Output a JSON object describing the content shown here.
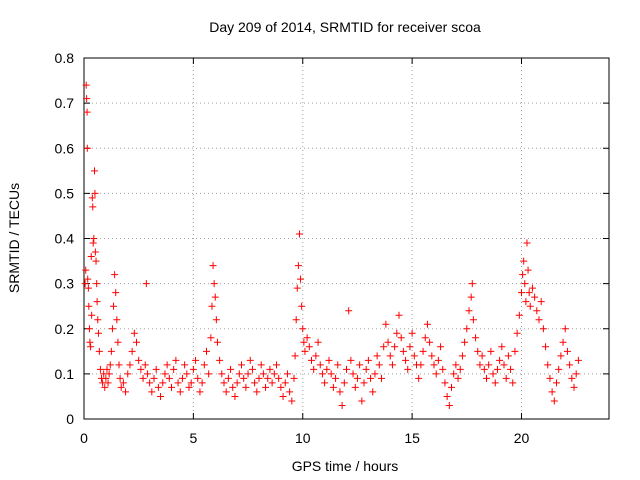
{
  "chart_data": {
    "type": "scatter",
    "title": "Day 209 of 2014, SRMTID for receiver scoa",
    "xlabel": "GPS time / hours",
    "ylabel": "SRMTID / TECUs",
    "xlim": [
      0,
      24
    ],
    "ylim": [
      0,
      0.8
    ],
    "xticks": [
      0,
      5,
      10,
      15,
      20
    ],
    "yticks": [
      0,
      0.1,
      0.2,
      0.3,
      0.4,
      0.5,
      0.6,
      0.7,
      0.8
    ],
    "xtick_labels": [
      "0",
      "5",
      "10",
      "15",
      "20"
    ],
    "ytick_labels": [
      "0",
      "0.1",
      "0.2",
      "0.3",
      "0.4",
      "0.5",
      "0.6",
      "0.7",
      "0.8"
    ],
    "marker": "plus",
    "color": "#ff0000",
    "series": [
      {
        "name": "SRMTID",
        "points": [
          [
            0.05,
            0.3
          ],
          [
            0.08,
            0.33
          ],
          [
            0.1,
            0.74
          ],
          [
            0.12,
            0.71
          ],
          [
            0.14,
            0.68
          ],
          [
            0.15,
            0.6
          ],
          [
            0.17,
            0.31
          ],
          [
            0.2,
            0.29
          ],
          [
            0.22,
            0.25
          ],
          [
            0.25,
            0.2
          ],
          [
            0.27,
            0.17
          ],
          [
            0.3,
            0.16
          ],
          [
            0.33,
            0.36
          ],
          [
            0.35,
            0.23
          ],
          [
            0.38,
            0.49
          ],
          [
            0.4,
            0.47
          ],
          [
            0.42,
            0.39
          ],
          [
            0.45,
            0.4
          ],
          [
            0.48,
            0.55
          ],
          [
            0.5,
            0.5
          ],
          [
            0.52,
            0.37
          ],
          [
            0.55,
            0.35
          ],
          [
            0.58,
            0.3
          ],
          [
            0.6,
            0.26
          ],
          [
            0.63,
            0.22
          ],
          [
            0.66,
            0.19
          ],
          [
            0.7,
            0.15
          ],
          [
            0.75,
            0.11
          ],
          [
            0.8,
            0.09
          ],
          [
            0.85,
            0.08
          ],
          [
            0.9,
            0.1
          ],
          [
            0.95,
            0.07
          ],
          [
            1.0,
            0.09
          ],
          [
            1.05,
            0.11
          ],
          [
            1.1,
            0.08
          ],
          [
            1.15,
            0.1
          ],
          [
            1.2,
            0.12
          ],
          [
            1.25,
            0.15
          ],
          [
            1.3,
            0.2
          ],
          [
            1.35,
            0.25
          ],
          [
            1.4,
            0.32
          ],
          [
            1.45,
            0.28
          ],
          [
            1.5,
            0.22
          ],
          [
            1.55,
            0.17
          ],
          [
            1.6,
            0.12
          ],
          [
            1.65,
            0.09
          ],
          [
            1.7,
            0.07
          ],
          [
            1.8,
            0.08
          ],
          [
            1.9,
            0.06
          ],
          [
            2.0,
            0.1
          ],
          [
            2.1,
            0.12
          ],
          [
            2.2,
            0.15
          ],
          [
            2.3,
            0.19
          ],
          [
            2.4,
            0.17
          ],
          [
            2.5,
            0.13
          ],
          [
            2.6,
            0.11
          ],
          [
            2.7,
            0.09
          ],
          [
            2.8,
            0.12
          ],
          [
            2.85,
            0.3
          ],
          [
            2.9,
            0.1
          ],
          [
            3.0,
            0.08
          ],
          [
            3.1,
            0.06
          ],
          [
            3.2,
            0.09
          ],
          [
            3.3,
            0.11
          ],
          [
            3.4,
            0.07
          ],
          [
            3.5,
            0.05
          ],
          [
            3.6,
            0.08
          ],
          [
            3.7,
            0.1
          ],
          [
            3.8,
            0.12
          ],
          [
            3.9,
            0.09
          ],
          [
            4.0,
            0.07
          ],
          [
            4.1,
            0.11
          ],
          [
            4.2,
            0.13
          ],
          [
            4.3,
            0.08
          ],
          [
            4.4,
            0.06
          ],
          [
            4.5,
            0.09
          ],
          [
            4.6,
            0.12
          ],
          [
            4.7,
            0.1
          ],
          [
            4.8,
            0.07
          ],
          [
            4.9,
            0.08
          ],
          [
            5.0,
            0.11
          ],
          [
            5.1,
            0.13
          ],
          [
            5.2,
            0.09
          ],
          [
            5.3,
            0.06
          ],
          [
            5.4,
            0.08
          ],
          [
            5.5,
            0.12
          ],
          [
            5.6,
            0.15
          ],
          [
            5.7,
            0.1
          ],
          [
            5.8,
            0.18
          ],
          [
            5.85,
            0.25
          ],
          [
            5.9,
            0.34
          ],
          [
            5.95,
            0.3
          ],
          [
            6.0,
            0.27
          ],
          [
            6.05,
            0.22
          ],
          [
            6.1,
            0.17
          ],
          [
            6.2,
            0.13
          ],
          [
            6.3,
            0.1
          ],
          [
            6.4,
            0.08
          ],
          [
            6.5,
            0.06
          ],
          [
            6.6,
            0.09
          ],
          [
            6.7,
            0.11
          ],
          [
            6.8,
            0.07
          ],
          [
            6.9,
            0.05
          ],
          [
            7.0,
            0.08
          ],
          [
            7.1,
            0.1
          ],
          [
            7.2,
            0.12
          ],
          [
            7.3,
            0.09
          ],
          [
            7.4,
            0.07
          ],
          [
            7.5,
            0.1
          ],
          [
            7.6,
            0.13
          ],
          [
            7.7,
            0.11
          ],
          [
            7.8,
            0.08
          ],
          [
            7.9,
            0.06
          ],
          [
            8.0,
            0.09
          ],
          [
            8.1,
            0.12
          ],
          [
            8.2,
            0.1
          ],
          [
            8.3,
            0.07
          ],
          [
            8.4,
            0.09
          ],
          [
            8.5,
            0.11
          ],
          [
            8.6,
            0.08
          ],
          [
            8.7,
            0.1
          ],
          [
            8.8,
            0.12
          ],
          [
            8.9,
            0.09
          ],
          [
            9.0,
            0.07
          ],
          [
            9.1,
            0.05
          ],
          [
            9.2,
            0.08
          ],
          [
            9.3,
            0.1
          ],
          [
            9.4,
            0.06
          ],
          [
            9.5,
            0.04
          ],
          [
            9.6,
            0.09
          ],
          [
            9.65,
            0.14
          ],
          [
            9.7,
            0.22
          ],
          [
            9.75,
            0.29
          ],
          [
            9.8,
            0.34
          ],
          [
            9.85,
            0.41
          ],
          [
            9.9,
            0.31
          ],
          [
            9.95,
            0.25
          ],
          [
            10.0,
            0.2
          ],
          [
            10.05,
            0.17
          ],
          [
            10.1,
            0.15
          ],
          [
            10.2,
            0.18
          ],
          [
            10.3,
            0.16
          ],
          [
            10.4,
            0.13
          ],
          [
            10.5,
            0.11
          ],
          [
            10.6,
            0.14
          ],
          [
            10.7,
            0.17
          ],
          [
            10.8,
            0.12
          ],
          [
            10.9,
            0.1
          ],
          [
            11.0,
            0.08
          ],
          [
            11.1,
            0.11
          ],
          [
            11.2,
            0.13
          ],
          [
            11.3,
            0.1
          ],
          [
            11.4,
            0.07
          ],
          [
            11.5,
            0.09
          ],
          [
            11.6,
            0.12
          ],
          [
            11.7,
            0.06
          ],
          [
            11.8,
            0.03
          ],
          [
            11.9,
            0.08
          ],
          [
            12.0,
            0.11
          ],
          [
            12.1,
            0.24
          ],
          [
            12.2,
            0.13
          ],
          [
            12.3,
            0.1
          ],
          [
            12.4,
            0.07
          ],
          [
            12.5,
            0.09
          ],
          [
            12.6,
            0.12
          ],
          [
            12.7,
            0.04
          ],
          [
            12.8,
            0.08
          ],
          [
            12.9,
            0.11
          ],
          [
            13.0,
            0.13
          ],
          [
            13.1,
            0.09
          ],
          [
            13.2,
            0.06
          ],
          [
            13.3,
            0.1
          ],
          [
            13.4,
            0.14
          ],
          [
            13.5,
            0.12
          ],
          [
            13.6,
            0.09
          ],
          [
            13.7,
            0.16
          ],
          [
            13.8,
            0.21
          ],
          [
            13.9,
            0.17
          ],
          [
            14.0,
            0.14
          ],
          [
            14.1,
            0.12
          ],
          [
            14.2,
            0.16
          ],
          [
            14.3,
            0.19
          ],
          [
            14.4,
            0.23
          ],
          [
            14.5,
            0.18
          ],
          [
            14.6,
            0.15
          ],
          [
            14.7,
            0.13
          ],
          [
            14.8,
            0.11
          ],
          [
            14.9,
            0.16
          ],
          [
            15.0,
            0.19
          ],
          [
            15.1,
            0.14
          ],
          [
            15.2,
            0.12
          ],
          [
            15.3,
            0.09
          ],
          [
            15.4,
            0.12
          ],
          [
            15.5,
            0.15
          ],
          [
            15.6,
            0.18
          ],
          [
            15.7,
            0.21
          ],
          [
            15.8,
            0.17
          ],
          [
            15.9,
            0.14
          ],
          [
            16.0,
            0.12
          ],
          [
            16.1,
            0.1
          ],
          [
            16.2,
            0.13
          ],
          [
            16.3,
            0.16
          ],
          [
            16.4,
            0.11
          ],
          [
            16.5,
            0.08
          ],
          [
            16.6,
            0.05
          ],
          [
            16.7,
            0.03
          ],
          [
            16.8,
            0.07
          ],
          [
            16.9,
            0.1
          ],
          [
            17.0,
            0.12
          ],
          [
            17.1,
            0.09
          ],
          [
            17.2,
            0.11
          ],
          [
            17.3,
            0.14
          ],
          [
            17.4,
            0.17
          ],
          [
            17.5,
            0.2
          ],
          [
            17.6,
            0.24
          ],
          [
            17.7,
            0.27
          ],
          [
            17.75,
            0.3
          ],
          [
            17.8,
            0.22
          ],
          [
            17.9,
            0.18
          ],
          [
            18.0,
            0.15
          ],
          [
            18.1,
            0.12
          ],
          [
            18.2,
            0.14
          ],
          [
            18.3,
            0.11
          ],
          [
            18.4,
            0.09
          ],
          [
            18.5,
            0.12
          ],
          [
            18.6,
            0.15
          ],
          [
            18.7,
            0.1
          ],
          [
            18.8,
            0.08
          ],
          [
            18.9,
            0.11
          ],
          [
            19.0,
            0.13
          ],
          [
            19.1,
            0.16
          ],
          [
            19.2,
            0.12
          ],
          [
            19.3,
            0.09
          ],
          [
            19.4,
            0.14
          ],
          [
            19.5,
            0.11
          ],
          [
            19.6,
            0.08
          ],
          [
            19.7,
            0.15
          ],
          [
            19.8,
            0.19
          ],
          [
            19.9,
            0.23
          ],
          [
            20.0,
            0.28
          ],
          [
            20.05,
            0.32
          ],
          [
            20.1,
            0.35
          ],
          [
            20.15,
            0.3
          ],
          [
            20.2,
            0.26
          ],
          [
            20.25,
            0.39
          ],
          [
            20.3,
            0.33
          ],
          [
            20.35,
            0.28
          ],
          [
            20.4,
            0.25
          ],
          [
            20.5,
            0.29
          ],
          [
            20.6,
            0.27
          ],
          [
            20.7,
            0.24
          ],
          [
            20.8,
            0.22
          ],
          [
            20.9,
            0.26
          ],
          [
            21.0,
            0.2
          ],
          [
            21.1,
            0.16
          ],
          [
            21.2,
            0.12
          ],
          [
            21.3,
            0.09
          ],
          [
            21.4,
            0.06
          ],
          [
            21.5,
            0.04
          ],
          [
            21.6,
            0.08
          ],
          [
            21.7,
            0.11
          ],
          [
            21.8,
            0.14
          ],
          [
            21.9,
            0.17
          ],
          [
            22.0,
            0.2
          ],
          [
            22.1,
            0.15
          ],
          [
            22.2,
            0.12
          ],
          [
            22.3,
            0.09
          ],
          [
            22.4,
            0.07
          ],
          [
            22.5,
            0.1
          ],
          [
            22.6,
            0.13
          ]
        ]
      }
    ]
  }
}
